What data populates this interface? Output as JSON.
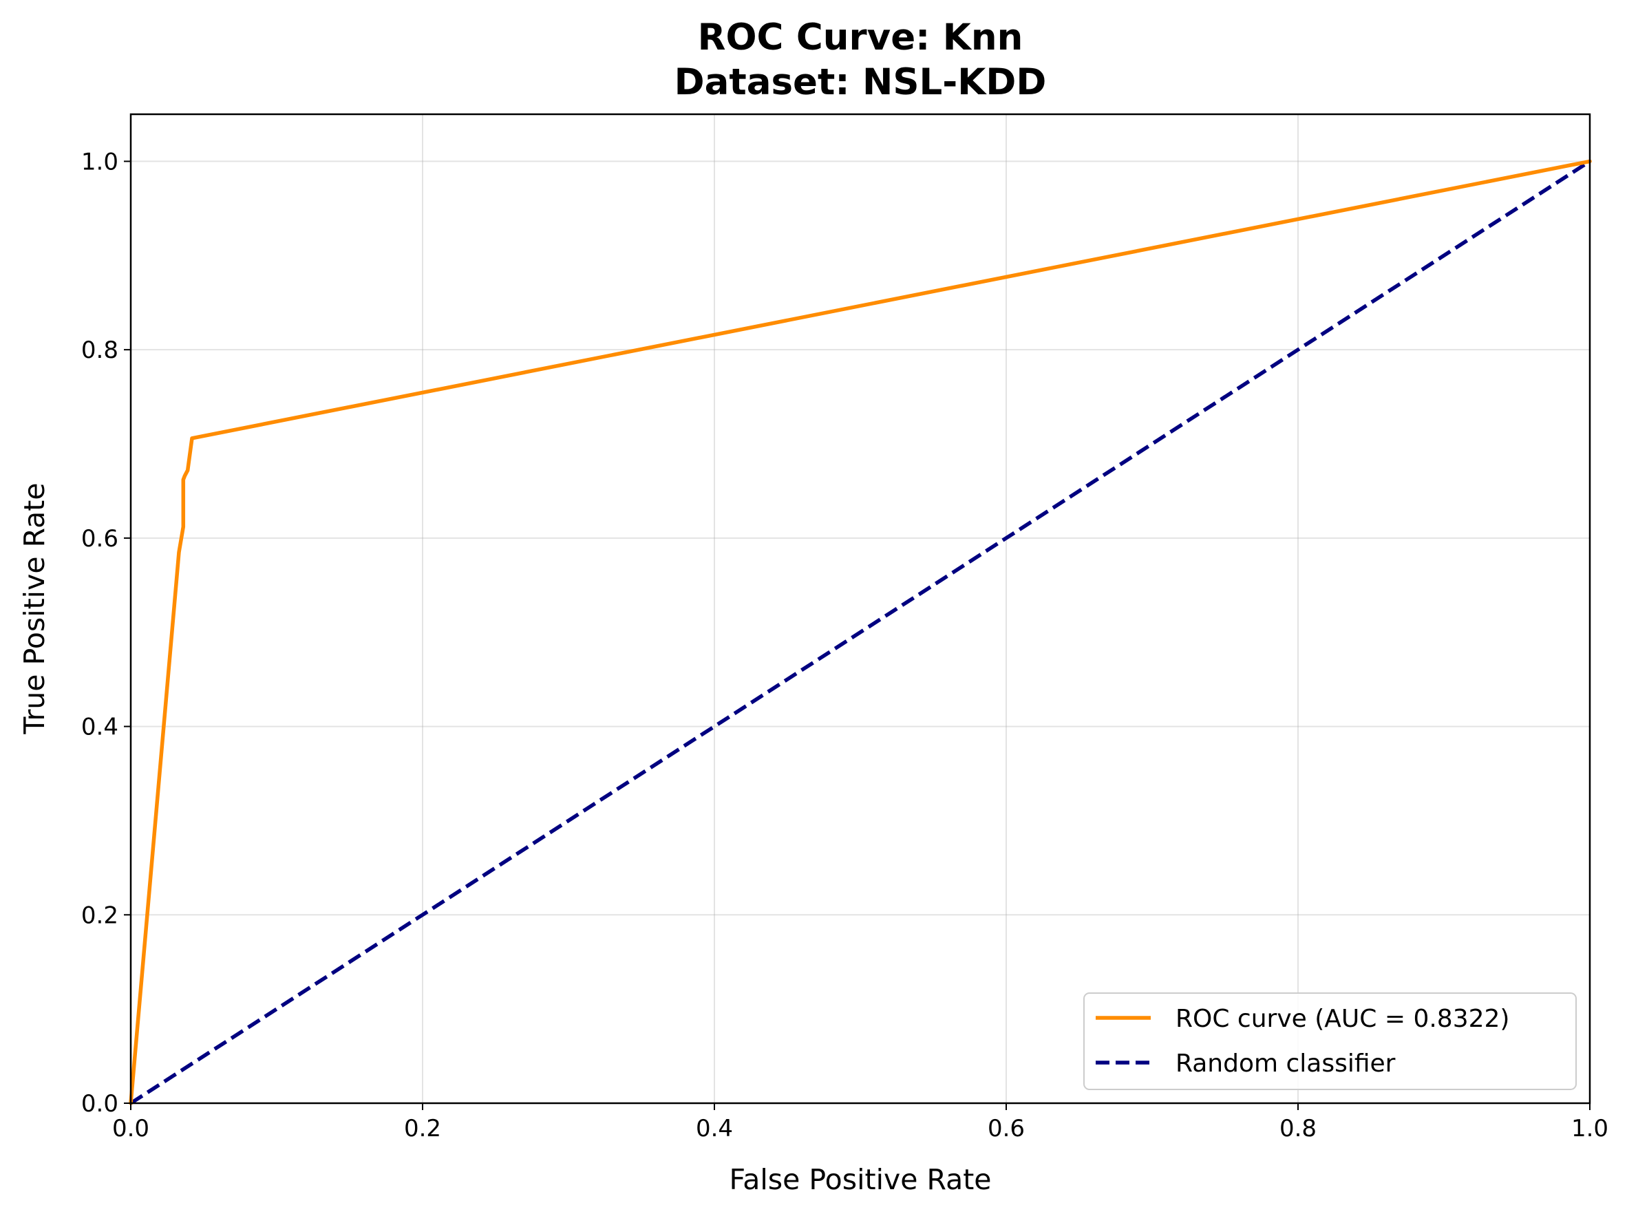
{
  "chart_data": {
    "type": "line",
    "title": "ROC Curve: Knn",
    "subtitle": "Dataset: NSL-KDD",
    "xlabel": "False Positive Rate",
    "ylabel": "True Positive Rate",
    "xlim": [
      0.0,
      1.0
    ],
    "ylim": [
      0.0,
      1.05
    ],
    "x_ticks": [
      0.0,
      0.2,
      0.4,
      0.6,
      0.8,
      1.0
    ],
    "x_tick_labels": [
      "0.0",
      "0.2",
      "0.4",
      "0.6",
      "0.8",
      "1.0"
    ],
    "y_ticks": [
      0.0,
      0.2,
      0.4,
      0.6,
      0.8,
      1.0
    ],
    "y_tick_labels": [
      "0.0",
      "0.2",
      "0.4",
      "0.6",
      "0.8",
      "1.0"
    ],
    "grid": true,
    "legend_position": "lower-right",
    "series": [
      {
        "name": "ROC curve (AUC = 0.8322)",
        "color": "#ff8c00",
        "style": "solid",
        "x": [
          0.0,
          0.033,
          0.036,
          0.036,
          0.037,
          0.039,
          0.042,
          1.0
        ],
        "y": [
          0.0,
          0.585,
          0.612,
          0.662,
          0.666,
          0.672,
          0.706,
          1.0
        ]
      },
      {
        "name": "Random classifier",
        "color": "#000080",
        "style": "dashed",
        "x": [
          0.0,
          1.0
        ],
        "y": [
          0.0,
          1.0
        ]
      }
    ]
  }
}
